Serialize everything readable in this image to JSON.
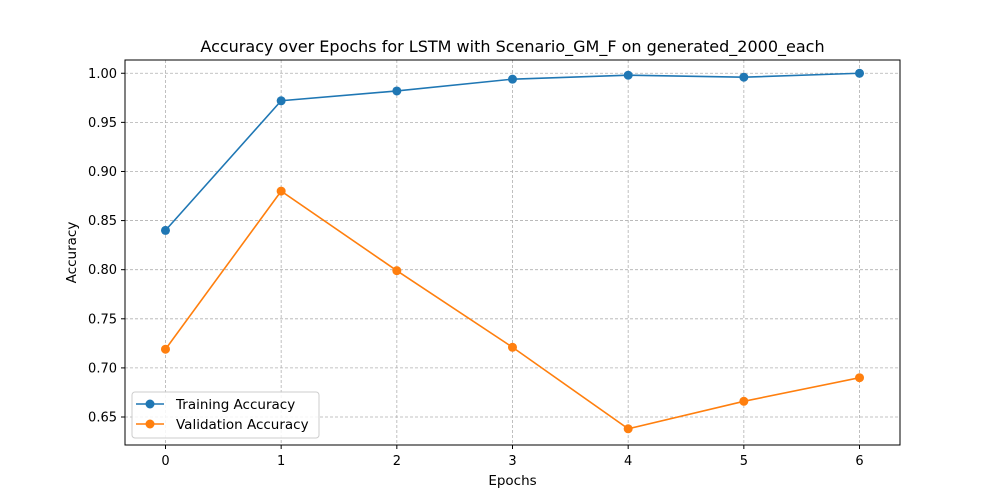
{
  "chart_data": {
    "type": "line",
    "title": "Accuracy over Epochs for LSTM with Scenario_GM_F on generated_2000_each",
    "xlabel": "Epochs",
    "ylabel": "Accuracy",
    "x": [
      0,
      1,
      2,
      3,
      4,
      5,
      6
    ],
    "xlim": [
      -0.35,
      6.35
    ],
    "ylim": [
      0.6215,
      1.0135
    ],
    "x_ticks": [
      "0",
      "1",
      "2",
      "3",
      "4",
      "5",
      "6"
    ],
    "y_ticks": [
      "0.65",
      "0.70",
      "0.75",
      "0.80",
      "0.85",
      "0.90",
      "0.95",
      "1.00"
    ],
    "y_tick_values": [
      0.65,
      0.7,
      0.75,
      0.8,
      0.85,
      0.9,
      0.95,
      1.0
    ],
    "grid": true,
    "legend_position": "lower-left",
    "series": [
      {
        "name": "Training Accuracy",
        "color": "#1f77b4",
        "marker": "circle",
        "values": [
          0.84,
          0.972,
          0.982,
          0.994,
          0.998,
          0.996,
          1.0
        ]
      },
      {
        "name": "Validation Accuracy",
        "color": "#ff7f0e",
        "marker": "circle",
        "values": [
          0.719,
          0.88,
          0.799,
          0.721,
          0.638,
          0.666,
          0.69
        ]
      }
    ]
  }
}
